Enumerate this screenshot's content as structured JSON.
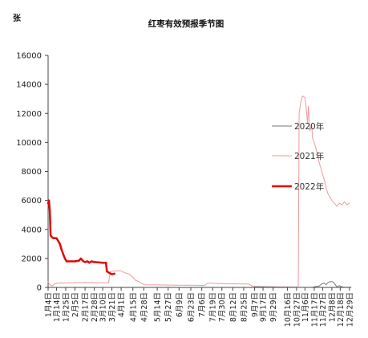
{
  "chart_data": {
    "type": "line",
    "title": "红枣有效预报季节图",
    "unit": "张",
    "xlabel": "",
    "ylabel": "",
    "ylim": [
      0,
      16000
    ],
    "yticks": [
      0,
      2000,
      4000,
      6000,
      8000,
      10000,
      12000,
      14000,
      16000
    ],
    "x_domain": [
      "01-04",
      "12-31"
    ],
    "xticks": [
      {
        "date": "01-04",
        "label": "1月4日"
      },
      {
        "date": "01-14",
        "label": "1月14日"
      },
      {
        "date": "01-25",
        "label": "1月25日"
      },
      {
        "date": "02-05",
        "label": "2月5日"
      },
      {
        "date": "02-17",
        "label": "2月17日"
      },
      {
        "date": "02-28",
        "label": "2月28日"
      },
      {
        "date": "03-10",
        "label": "3月10日"
      },
      {
        "date": "03-21",
        "label": "3月21日"
      },
      {
        "date": "04-01",
        "label": "4月1日"
      },
      {
        "date": "04-15",
        "label": "4月15日"
      },
      {
        "date": "04-28",
        "label": "4月28日"
      },
      {
        "date": "05-14",
        "label": "5月14日"
      },
      {
        "date": "05-27",
        "label": "5月27日"
      },
      {
        "date": "06-09",
        "label": "6月9日"
      },
      {
        "date": "06-23",
        "label": "6月23日"
      },
      {
        "date": "07-06",
        "label": "7月6日"
      },
      {
        "date": "07-19",
        "label": "7月19日"
      },
      {
        "date": "07-30",
        "label": "7月30日"
      },
      {
        "date": "08-12",
        "label": "8月12日"
      },
      {
        "date": "08-25",
        "label": "8月25日"
      },
      {
        "date": "09-07",
        "label": "9月7日"
      },
      {
        "date": "09-17",
        "label": "9月17日"
      },
      {
        "date": "09-29",
        "label": "9月29日"
      },
      {
        "date": "10-16",
        "label": "10月16日"
      },
      {
        "date": "10-27",
        "label": "10月27日"
      },
      {
        "date": "11-06",
        "label": "11月6日"
      },
      {
        "date": "11-17",
        "label": "11月17日"
      },
      {
        "date": "11-27",
        "label": "11月27日"
      },
      {
        "date": "12-08",
        "label": "12月8日"
      },
      {
        "date": "12-18",
        "label": "12月18日"
      },
      {
        "date": "12-29",
        "label": "12月29日"
      }
    ],
    "grid": false,
    "legend_position": "right",
    "series": [
      {
        "name": "2020年",
        "color": "#777777",
        "width": 1,
        "points": [
          [
            "09-07",
            50
          ],
          [
            "09-20",
            40
          ],
          [
            "10-05",
            30
          ],
          [
            "10-20",
            20
          ],
          [
            "11-01",
            10
          ],
          [
            "11-15",
            20
          ],
          [
            "11-23",
            100
          ],
          [
            "11-26",
            250
          ],
          [
            "11-29",
            300
          ],
          [
            "12-01",
            180
          ],
          [
            "12-03",
            320
          ],
          [
            "12-05",
            380
          ],
          [
            "12-08",
            400
          ],
          [
            "12-10",
            360
          ],
          [
            "12-12",
            200
          ],
          [
            "12-14",
            40
          ],
          [
            "12-17",
            120
          ],
          [
            "12-19",
            60
          ],
          [
            "12-22",
            20
          ],
          [
            "12-31",
            20
          ]
        ]
      },
      {
        "name": "2021年",
        "color": "#f0999c",
        "width": 1,
        "points": [
          [
            "01-04",
            380
          ],
          [
            "01-06",
            200
          ],
          [
            "01-09",
            100
          ],
          [
            "01-12",
            250
          ],
          [
            "01-15",
            300
          ],
          [
            "01-25",
            320
          ],
          [
            "02-05",
            330
          ],
          [
            "02-17",
            340
          ],
          [
            "02-28",
            330
          ],
          [
            "03-10",
            320
          ],
          [
            "03-17",
            310
          ],
          [
            "03-19",
            1100
          ],
          [
            "03-28",
            1150
          ],
          [
            "04-01",
            1130
          ],
          [
            "04-06",
            1000
          ],
          [
            "04-11",
            900
          ],
          [
            "04-15",
            700
          ],
          [
            "04-18",
            500
          ],
          [
            "04-22",
            400
          ],
          [
            "04-25",
            300
          ],
          [
            "04-29",
            180
          ],
          [
            "05-14",
            170
          ],
          [
            "05-27",
            160
          ],
          [
            "06-09",
            150
          ],
          [
            "06-23",
            150
          ],
          [
            "07-06",
            140
          ],
          [
            "07-09",
            130
          ],
          [
            "07-13",
            300
          ],
          [
            "07-19",
            280
          ],
          [
            "07-30",
            260
          ],
          [
            "08-12",
            250
          ],
          [
            "08-25",
            240
          ],
          [
            "08-31",
            230
          ],
          [
            "09-04",
            100
          ],
          [
            "09-07",
            60
          ],
          [
            "09-17",
            50
          ],
          [
            "09-29",
            40
          ],
          [
            "10-16",
            40
          ],
          [
            "10-27",
            30
          ],
          [
            "10-29",
            10
          ],
          [
            "10-30",
            12000
          ],
          [
            "11-01",
            12800
          ],
          [
            "11-03",
            13200
          ],
          [
            "11-06",
            13100
          ],
          [
            "11-08",
            12000
          ],
          [
            "11-09",
            11300
          ],
          [
            "11-10",
            12500
          ],
          [
            "11-11",
            11600
          ],
          [
            "11-12",
            10800
          ],
          [
            "11-14",
            11200
          ],
          [
            "11-15",
            10300
          ],
          [
            "11-17",
            10000
          ],
          [
            "11-19",
            9600
          ],
          [
            "11-21",
            9100
          ],
          [
            "11-23",
            8600
          ],
          [
            "11-25",
            8200
          ],
          [
            "11-27",
            7800
          ],
          [
            "11-29",
            7400
          ],
          [
            "12-01",
            6900
          ],
          [
            "12-03",
            6500
          ],
          [
            "12-05",
            6300
          ],
          [
            "12-08",
            6000
          ],
          [
            "12-11",
            5800
          ],
          [
            "12-14",
            5600
          ],
          [
            "12-17",
            5800
          ],
          [
            "12-20",
            5700
          ],
          [
            "12-23",
            5900
          ],
          [
            "12-26",
            5700
          ],
          [
            "12-29",
            5800
          ]
        ]
      },
      {
        "name": "2022年",
        "color": "#e60000",
        "width": 2.5,
        "points": [
          [
            "01-04",
            5800
          ],
          [
            "01-05",
            6000
          ],
          [
            "01-06",
            5300
          ],
          [
            "01-07",
            3600
          ],
          [
            "01-08",
            3500
          ],
          [
            "01-10",
            3400
          ],
          [
            "01-14",
            3400
          ],
          [
            "01-16",
            3200
          ],
          [
            "01-18",
            3000
          ],
          [
            "01-20",
            2600
          ],
          [
            "01-22",
            2300
          ],
          [
            "01-24",
            2000
          ],
          [
            "01-26",
            1800
          ],
          [
            "02-05",
            1800
          ],
          [
            "02-10",
            1850
          ],
          [
            "02-12",
            2000
          ],
          [
            "02-15",
            1800
          ],
          [
            "02-17",
            1750
          ],
          [
            "02-20",
            1800
          ],
          [
            "02-22",
            1700
          ],
          [
            "02-25",
            1800
          ],
          [
            "02-28",
            1750
          ],
          [
            "03-10",
            1700
          ],
          [
            "03-14",
            1700
          ],
          [
            "03-15",
            1100
          ],
          [
            "03-18",
            1000
          ],
          [
            "03-21",
            900
          ],
          [
            "03-24",
            950
          ]
        ]
      }
    ]
  }
}
